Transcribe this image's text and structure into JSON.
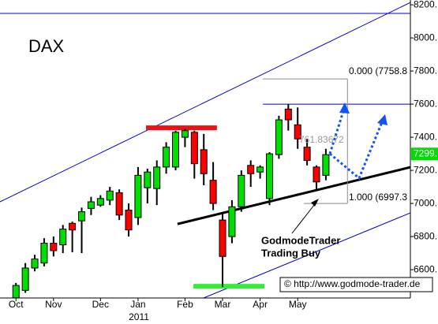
{
  "chart_data": {
    "type": "candlestick",
    "title": "DAX",
    "categories": [
      null,
      null,
      null,
      null,
      null,
      null,
      null,
      null,
      null,
      null,
      null,
      null,
      null,
      null,
      null,
      null,
      null,
      null,
      null,
      null,
      null,
      null,
      null,
      null,
      null,
      null,
      null,
      null,
      null,
      null,
      null,
      null,
      null,
      null
    ],
    "open": [
      6430,
      6475,
      6610,
      6640,
      6760,
      6750,
      6880,
      6895,
      6970,
      6990,
      7020,
      7065,
      6960,
      6915,
      7095,
      7090,
      7220,
      7220,
      7400,
      7430,
      7325,
      7140,
      6900,
      6800,
      6980,
      7230,
      7190,
      7030,
      7295,
      7570,
      7475,
      7340,
      7220,
      7170
    ],
    "high": [
      6520,
      6640,
      6690,
      6790,
      6800,
      6870,
      6890,
      6975,
      7040,
      7050,
      7100,
      7085,
      7000,
      7220,
      7210,
      7260,
      7370,
      7440,
      7450,
      7440,
      7420,
      7250,
      6940,
      7020,
      7200,
      7260,
      7230,
      7310,
      7530,
      7600,
      7580,
      7390,
      7230,
      7330
    ],
    "low": [
      6430,
      6460,
      6590,
      6620,
      6680,
      6700,
      6705,
      6700,
      6930,
      6980,
      6990,
      6900,
      6800,
      6870,
      7000,
      6990,
      7180,
      7200,
      7340,
      7150,
      7110,
      6960,
      6495,
      6760,
      6950,
      7100,
      7150,
      6990,
      7270,
      7440,
      7330,
      7230,
      7080,
      7140
    ],
    "close": [
      6505,
      6610,
      6665,
      6760,
      6715,
      6845,
      6840,
      6950,
      7010,
      7030,
      7075,
      6930,
      6840,
      7170,
      7190,
      7220,
      7340,
      7430,
      7440,
      7240,
      7180,
      7000,
      6680,
      6980,
      7170,
      7180,
      7220,
      7300,
      7505,
      7505,
      7390,
      7260,
      7130,
      7295
    ],
    "up_color": "#00dd00",
    "down_color": "#ff0000",
    "xlim": [
      -1.7,
      42
    ],
    "xticks": [
      {
        "value": 0,
        "label": "Oct"
      },
      {
        "value": 4,
        "label": "Nov"
      },
      {
        "value": 9,
        "label": "Dec"
      },
      {
        "value": 13,
        "label": "Jan"
      },
      {
        "value": 18,
        "label": "Feb"
      },
      {
        "value": 22,
        "label": "Mar"
      },
      {
        "value": 26,
        "label": "Apr"
      },
      {
        "value": 30,
        "label": "May"
      }
    ],
    "year_label": "2011",
    "ylim": [
      6429,
      8229
    ],
    "yticks": [
      {
        "value": 8200,
        "label": "8200."
      },
      {
        "value": 8000,
        "label": "8000."
      },
      {
        "value": 7800,
        "label": "7800."
      },
      {
        "value": 7600,
        "label": "7600."
      },
      {
        "value": 7400,
        "label": "7400."
      },
      {
        "value": 7200,
        "label": "7200."
      },
      {
        "value": 7000,
        "label": "7000."
      },
      {
        "value": 6800,
        "label": "6800."
      },
      {
        "value": 6600,
        "label": "6600."
      }
    ],
    "last_price": {
      "value": 7299,
      "label": "7299."
    },
    "lines": [
      {
        "x": [
          -1.7,
          42
        ],
        "y": [
          8148,
          8148
        ],
        "color": "#0000cc",
        "style": "thin"
      },
      {
        "x": [
          -1.7,
          42
        ],
        "y": [
          7010,
          8214
        ],
        "color": "#0000cc",
        "style": "thin"
      },
      {
        "x": [
          19.98,
          42
        ],
        "y": [
          6429,
          6943
        ],
        "color": "#0000cc",
        "style": "thin"
      },
      {
        "x": [
          26.3,
          42
        ],
        "y": [
          7600,
          7600
        ],
        "color": "#0000cc",
        "style": "thin"
      },
      {
        "x": [
          17.2,
          42
        ],
        "y": [
          6876,
          7219
        ],
        "color": "#000000",
        "style": "thick"
      },
      {
        "x": [
          13.85,
          21.4
        ],
        "y": [
          7457,
          7457
        ],
        "color": "#ee1111",
        "style": "band"
      },
      {
        "x": [
          18.9,
          26.45
        ],
        "y": [
          6500,
          6500
        ],
        "color": "#33ee33",
        "style": "band"
      },
      {
        "x": [
          26.3,
          35.3
        ],
        "y": [
          7752,
          7752
        ],
        "color": "#888888",
        "style": "thin"
      },
      {
        "x": [
          30.66,
          35.3
        ],
        "y": [
          7000,
          7000
        ],
        "color": "#888888",
        "style": "thin"
      },
      {
        "x": [
          35.3,
          35.3
        ],
        "y": [
          7752,
          7000
        ],
        "color": "#888888",
        "style": "thin"
      }
    ],
    "annotations": [
      "0.000 (7758.8",
      "1.000 (6997.3",
      "761.83672",
      "GodmodeTrader",
      "Trading Buy",
      "© http://www.godmode-trader.de"
    ]
  }
}
